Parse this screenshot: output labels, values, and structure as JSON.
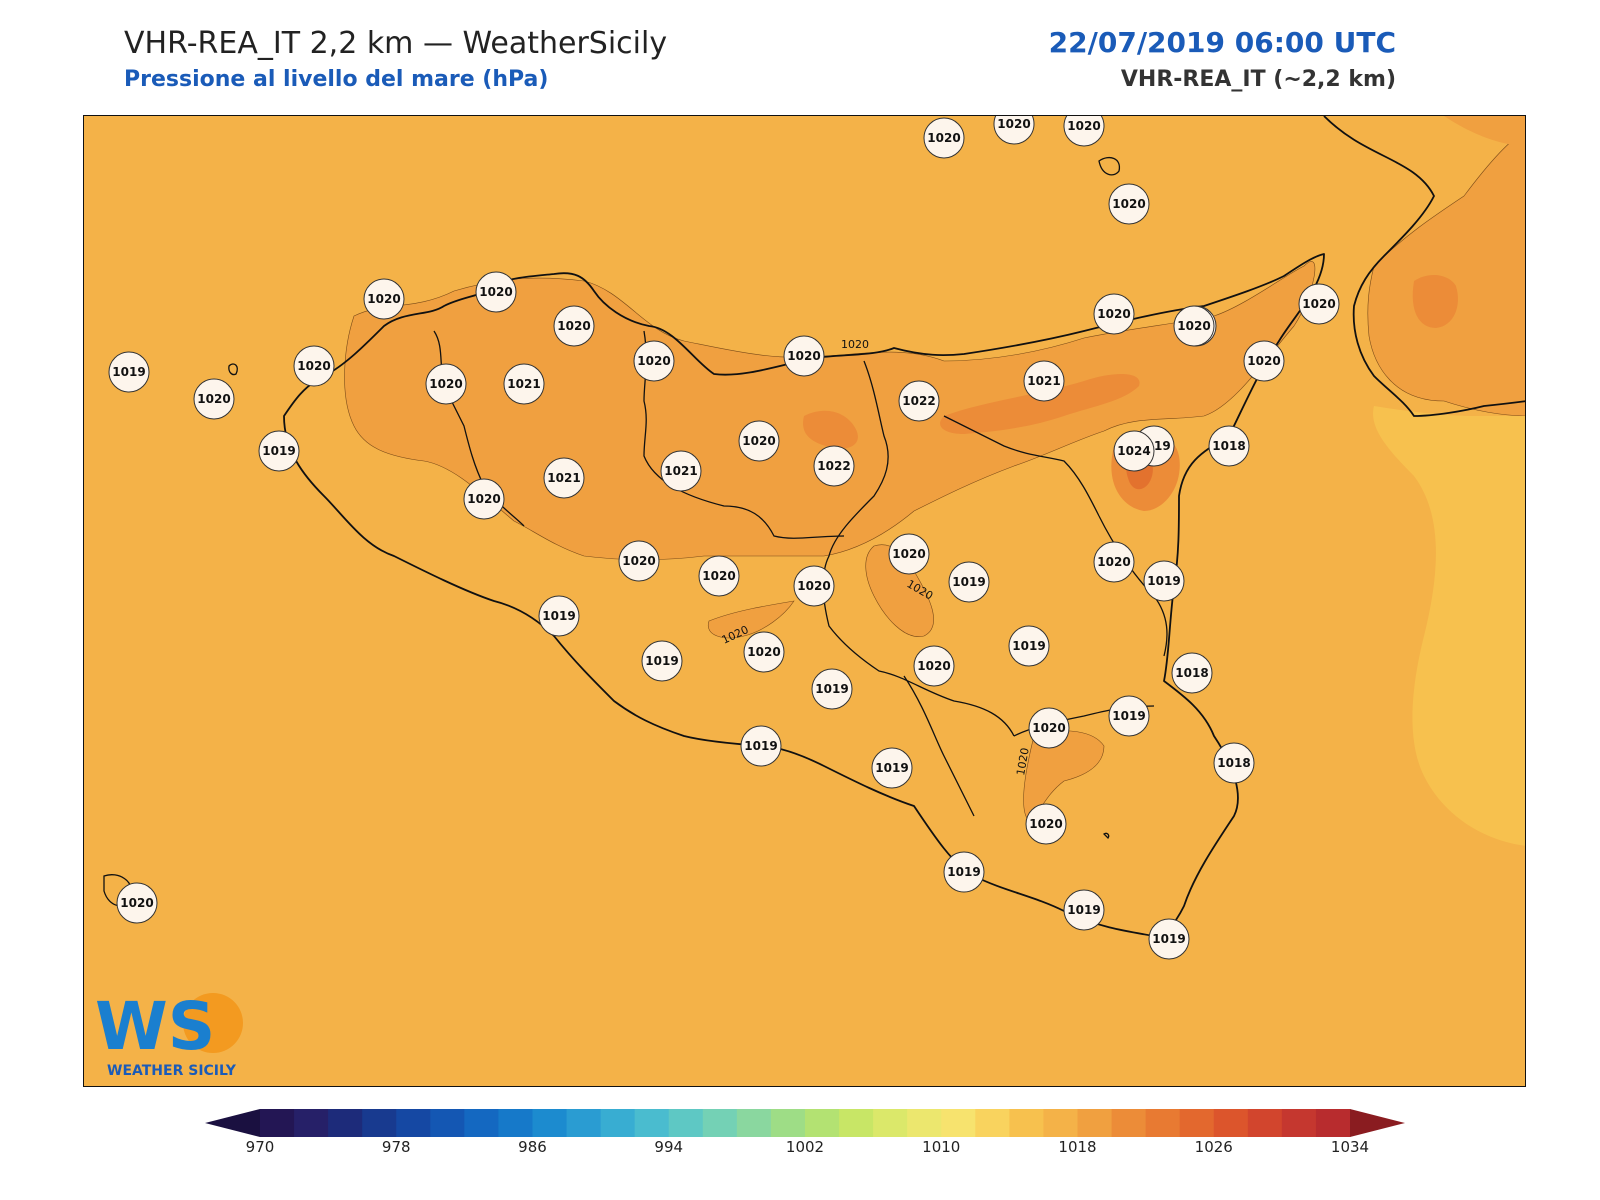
{
  "header": {
    "title": "VHR-REA_IT 2,2 km — WeatherSicily",
    "subtitle": "Pressione al livello del mare (hPa)",
    "datetime": "22/07/2019 06:00 UTC",
    "model": "VHR-REA_IT (~2,2 km)"
  },
  "colors": {
    "accent": "#1a5bb8",
    "background_field": "#f4b248",
    "field_1021": "#f0a040",
    "field_1022": "#ec8c38",
    "field_1024": "#e3722e"
  },
  "map": {
    "contour_labels": [
      "1020",
      "1020",
      "1020",
      "1020",
      "1020"
    ],
    "stations": [
      {
        "value": "1020"
      },
      {
        "value": "1020"
      },
      {
        "value": "1020"
      },
      {
        "value": "1020"
      },
      {
        "value": "1020"
      },
      {
        "value": "1020"
      },
      {
        "value": "1020"
      },
      {
        "value": "1020"
      },
      {
        "value": "1020"
      },
      {
        "value": "1020"
      },
      {
        "value": "1021"
      },
      {
        "value": "1020"
      },
      {
        "value": "1020"
      },
      {
        "value": "1019"
      },
      {
        "value": "1020"
      },
      {
        "value": "1020"
      },
      {
        "value": "1021"
      },
      {
        "value": "1021"
      },
      {
        "value": "1021"
      },
      {
        "value": "1020"
      },
      {
        "value": "1022"
      },
      {
        "value": "1022"
      },
      {
        "value": "1021"
      },
      {
        "value": "1020"
      },
      {
        "value": "1019"
      },
      {
        "value": "1020"
      },
      {
        "value": "1024"
      },
      {
        "value": "1018"
      },
      {
        "value": "1019"
      },
      {
        "value": "1020"
      },
      {
        "value": "1020"
      },
      {
        "value": "1019"
      },
      {
        "value": "1020"
      },
      {
        "value": "1020"
      },
      {
        "value": "1019"
      },
      {
        "value": "1019"
      },
      {
        "value": "1019"
      },
      {
        "value": "1020"
      },
      {
        "value": "1019"
      },
      {
        "value": "1019"
      },
      {
        "value": "1020"
      },
      {
        "value": "1019"
      },
      {
        "value": "1019"
      },
      {
        "value": "1020"
      },
      {
        "value": "1020"
      },
      {
        "value": "1019"
      },
      {
        "value": "1018"
      },
      {
        "value": "1018"
      },
      {
        "value": "1019"
      },
      {
        "value": "1019"
      },
      {
        "value": "1019"
      },
      {
        "value": "1020"
      },
      {
        "value": "1020"
      },
      {
        "value": "1020"
      }
    ]
  },
  "colorbar": {
    "ticks": [
      "970",
      "978",
      "986",
      "994",
      "1002",
      "1010",
      "1018",
      "1026",
      "1034"
    ],
    "colors": [
      "#231654",
      "#262068",
      "#1d2b7a",
      "#183a8f",
      "#1548a3",
      "#1457b3",
      "#1468c1",
      "#1679c9",
      "#1c8bcf",
      "#2a9cd2",
      "#38add2",
      "#4abccf",
      "#5ec8c4",
      "#74d1b5",
      "#8ad79f",
      "#9edd86",
      "#b3e272",
      "#c8e666",
      "#dbe86a",
      "#ece76e",
      "#f7e36e",
      "#f9d35e",
      "#f7c14e",
      "#f4b248",
      "#f0a040",
      "#ec8c38",
      "#e87a32",
      "#e3682e",
      "#dc552c",
      "#d2452d",
      "#c5372f",
      "#b82c2e"
    ],
    "under_color": "#1a1040",
    "over_color": "#8a1c20"
  },
  "logo": {
    "mark": "WS",
    "caption": "WEATHER SICILY"
  }
}
